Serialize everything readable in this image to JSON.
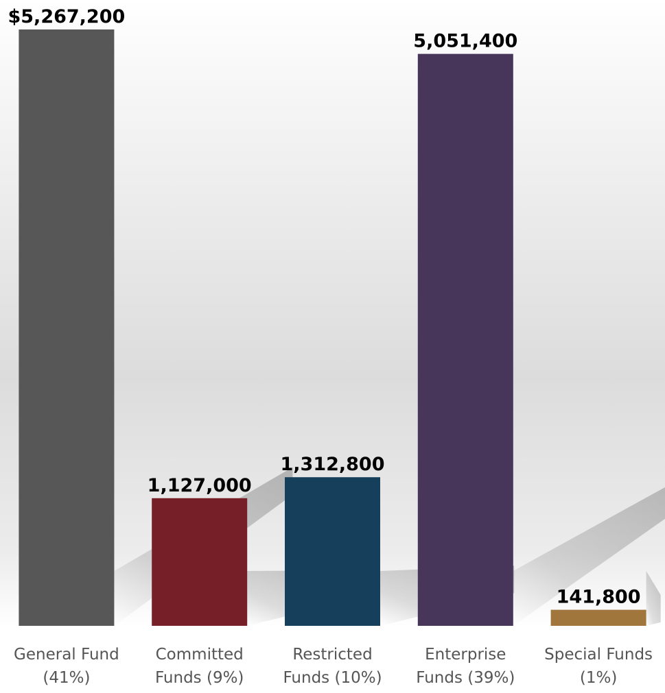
{
  "chart_data": {
    "type": "bar",
    "categories": [
      [
        "General Fund",
        "(41%)"
      ],
      [
        "Committed",
        "Funds (9%)"
      ],
      [
        "Restricted",
        "Funds (10%)"
      ],
      [
        "Enterprise",
        "Funds (39%)"
      ],
      [
        "Special Funds",
        "(1%)"
      ]
    ],
    "values": [
      5267200,
      1127000,
      1312800,
      5051400,
      141800
    ],
    "data_labels": [
      "$5,267,200",
      "1,127,000",
      "1,312,800",
      "5,051,400",
      "141,800"
    ],
    "colors": [
      "#575757",
      "#771f28",
      "#153f5a",
      "#47365a",
      "#a0763c"
    ],
    "title": "",
    "xlabel": "",
    "ylabel": "",
    "ylim": [
      0,
      5267200
    ],
    "grid": false,
    "legend": "none"
  }
}
